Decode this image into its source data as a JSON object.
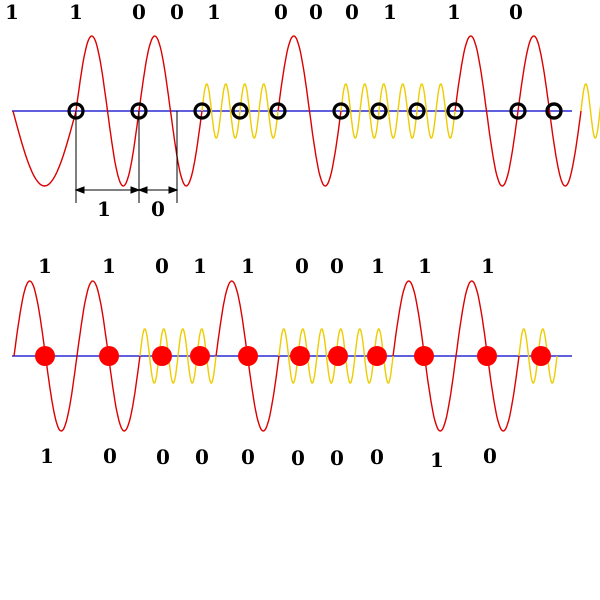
{
  "colors": {
    "background": "#ffffff",
    "axis": "#0000cc",
    "long_wave": "#dd0000",
    "short_wave": "#eecc00",
    "ring_marker": "#000000",
    "dot_marker": "#ff0000",
    "dimension": "#000000"
  },
  "top": {
    "bits": [
      "1",
      "1",
      "0",
      "0",
      "1",
      "0",
      "0",
      "0",
      "1",
      "1",
      "0"
    ],
    "segments": [
      "long",
      "long",
      "short",
      "short",
      "long",
      "short",
      "short",
      "short",
      "long",
      "long",
      "short"
    ],
    "dimension_labels": [
      "1",
      "0"
    ]
  },
  "bottom": {
    "top_bits": [
      "1",
      "1",
      "0",
      "1",
      "1",
      "0",
      "0",
      "1",
      "1",
      "1"
    ],
    "bottom_bits": [
      "1",
      "0",
      "0",
      "0",
      "0",
      "0",
      "0",
      "0",
      "1",
      "0"
    ],
    "segments": [
      "long",
      "long",
      "short",
      "short",
      "long",
      "short",
      "short",
      "short",
      "long",
      "long",
      "short"
    ]
  }
}
